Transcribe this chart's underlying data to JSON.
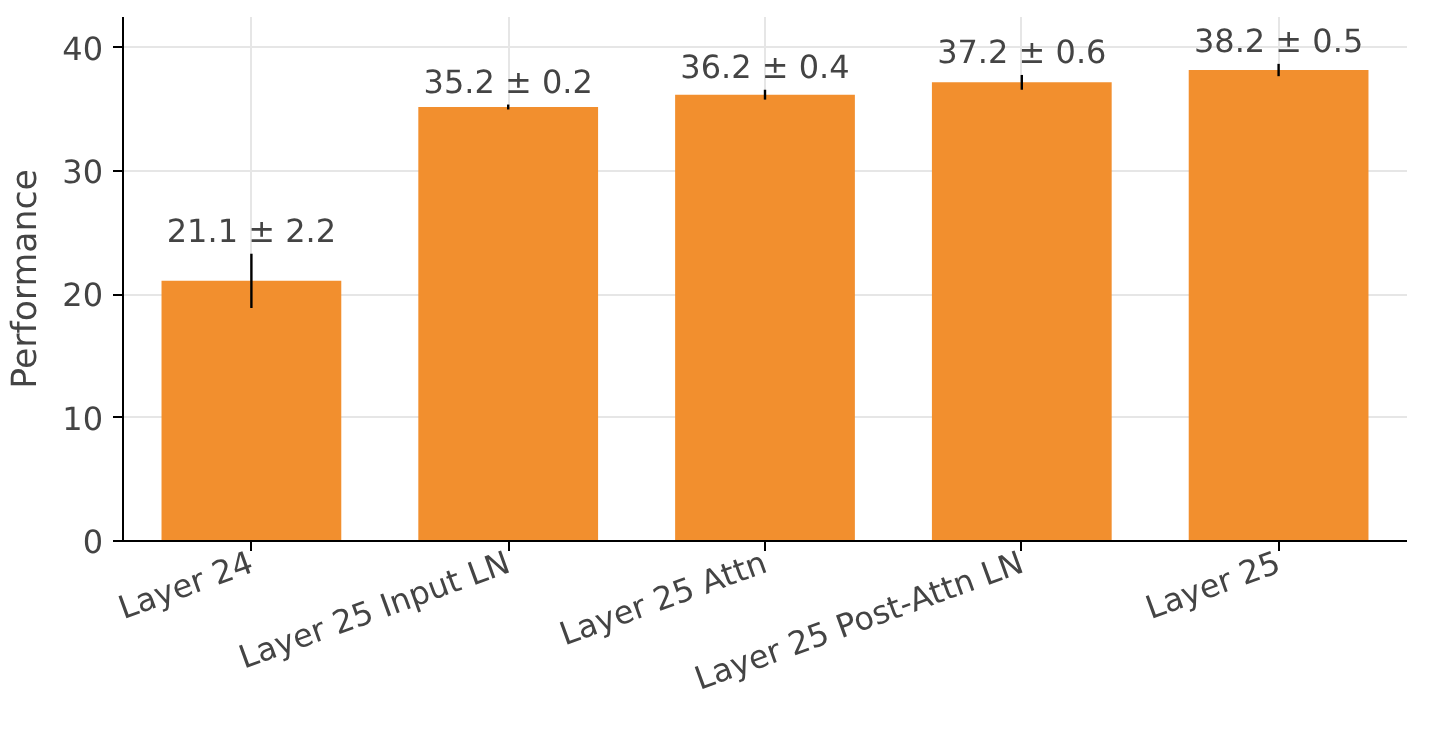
{
  "chart_data": {
    "type": "bar",
    "ylabel": "Performance",
    "categories": [
      "Layer 24",
      "Layer 25 Input LN",
      "Layer 25 Attn",
      "Layer 25 Post-Attn LN",
      "Layer 25"
    ],
    "values": [
      21.1,
      35.2,
      36.2,
      37.2,
      38.2
    ],
    "errors": [
      2.2,
      0.2,
      0.4,
      0.6,
      0.5
    ],
    "value_labels": [
      "21.1 ± 2.2",
      "35.2 ± 0.2",
      "36.2 ± 0.4",
      "37.2 ± 0.6",
      "38.2 ± 0.5"
    ],
    "color": "#f28f2e",
    "ylim": [
      0,
      42.5
    ],
    "yticks": [
      0,
      10,
      20,
      30,
      40
    ],
    "grid": true
  }
}
